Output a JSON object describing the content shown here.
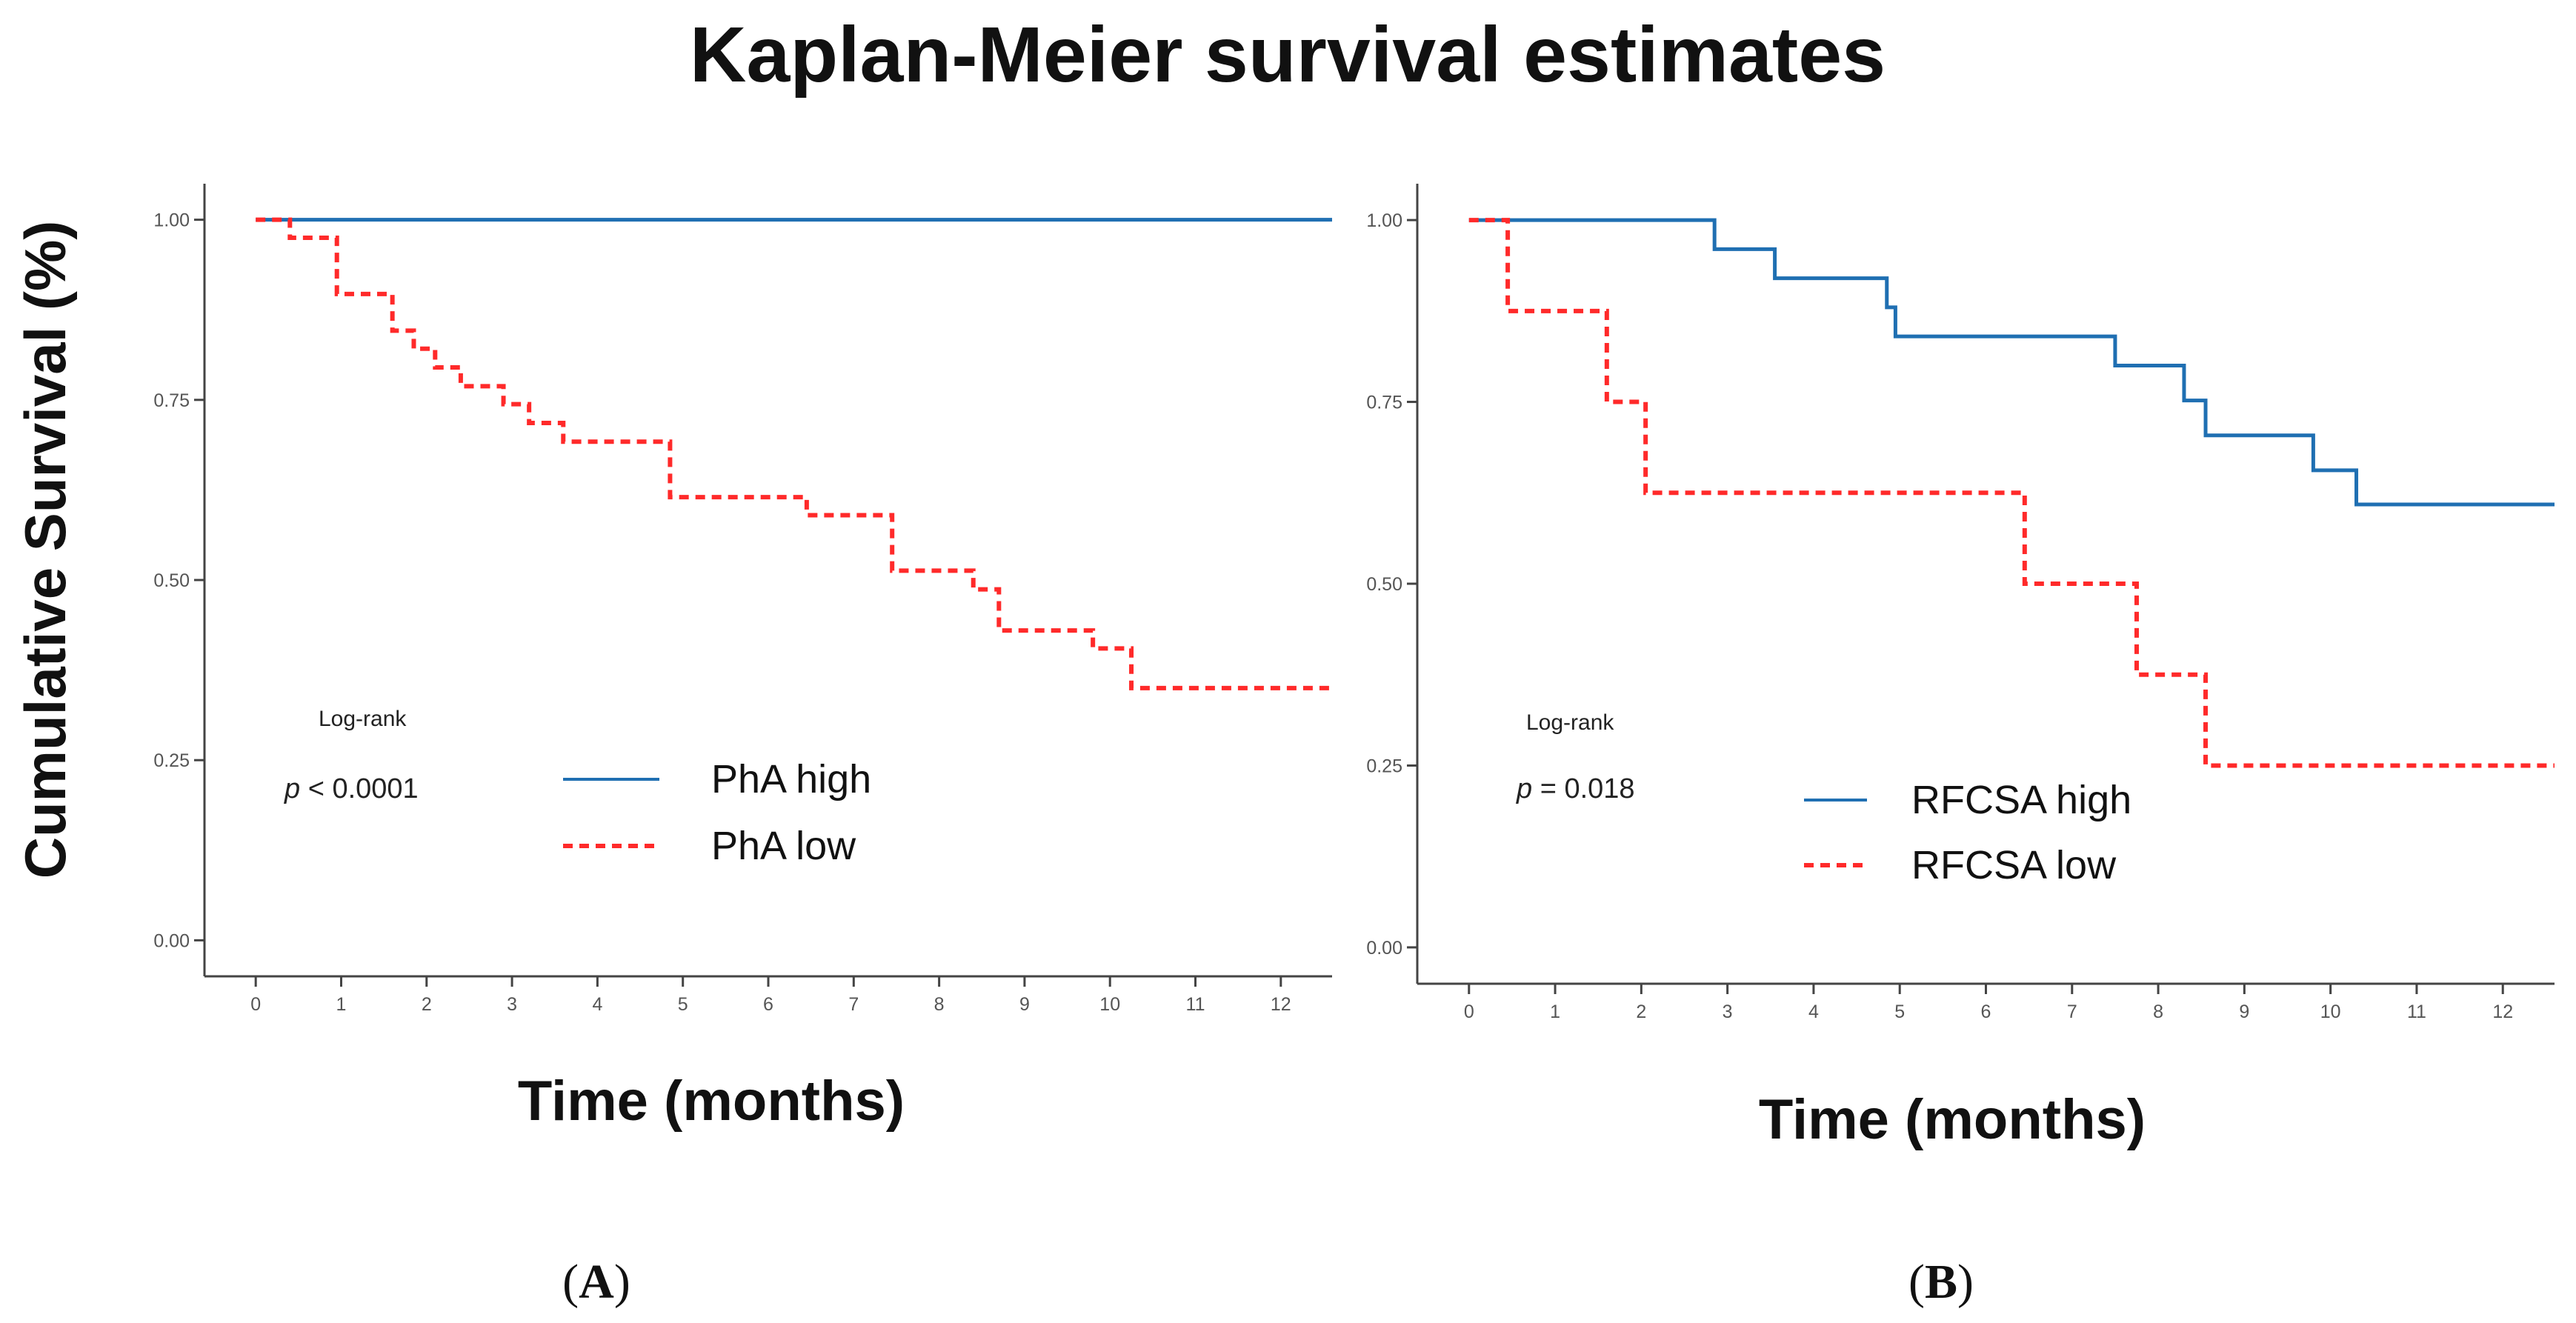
{
  "figure": {
    "title": "Kaplan-Meier survival estimates",
    "ylabel": "Cumulative Survival (%)"
  },
  "chart_data": [
    {
      "type": "line",
      "panel_label": "A",
      "title": "Kaplan-Meier survival estimates",
      "xlabel": "Time (months)",
      "ylabel": "Cumulative Survival (%)",
      "xlim": [
        -0.6,
        12.6
      ],
      "ylim": [
        -0.05,
        1.05
      ],
      "x_ticks": [
        "0",
        "1",
        "2",
        "3",
        "4",
        "5",
        "6",
        "7",
        "8",
        "9",
        "10",
        "11",
        "12"
      ],
      "y_ticks": [
        "0.00",
        "0.25",
        "0.50",
        "0.75",
        "1.00"
      ],
      "annotation": {
        "line1": "Log-rank",
        "p_symbol": "p",
        "p_value": " < 0.0001"
      },
      "legend": [
        "PhA high",
        "PhA low"
      ],
      "series": [
        {
          "name": "PhA high",
          "color": "#1f6fb2",
          "style": "solid",
          "times": [
            0,
            12.6
          ],
          "survival": [
            1.0,
            1.0
          ]
        },
        {
          "name": "PhA low",
          "color": "#ff2a2a",
          "style": "dashed",
          "times": [
            0,
            0.4,
            0.95,
            1.6,
            1.85,
            2.1,
            2.4,
            2.9,
            3.2,
            3.6,
            4.1,
            4.85,
            6.45,
            7.45,
            7.9,
            8.4,
            8.7,
            9.8,
            10.25,
            12.6
          ],
          "survival": [
            1.0,
            0.975,
            0.897,
            0.846,
            0.821,
            0.795,
            0.769,
            0.744,
            0.718,
            0.692,
            0.692,
            0.615,
            0.59,
            0.513,
            0.513,
            0.487,
            0.43,
            0.405,
            0.35,
            0.35
          ]
        }
      ]
    },
    {
      "type": "line",
      "panel_label": "B",
      "title": "Kaplan-Meier survival estimates",
      "xlabel": "Time (months)",
      "ylabel": "Cumulative Survival (%)",
      "xlim": [
        -0.6,
        12.6
      ],
      "ylim": [
        -0.05,
        1.05
      ],
      "x_ticks": [
        "0",
        "1",
        "2",
        "3",
        "4",
        "5",
        "6",
        "7",
        "8",
        "9",
        "10",
        "11",
        "12"
      ],
      "y_ticks": [
        "0.00",
        "0.25",
        "0.50",
        "0.75",
        "1.00"
      ],
      "annotation": {
        "line1": "Log-rank",
        "p_symbol": "p",
        "p_value": " = 0.018"
      },
      "legend": [
        "RFCSA high",
        "RFCSA low"
      ],
      "series": [
        {
          "name": "RFCSA high",
          "color": "#1f6fb2",
          "style": "solid",
          "times": [
            0,
            2.85,
            3.55,
            4.85,
            4.95,
            7.5,
            8.3,
            8.55,
            9.8,
            10.3,
            12.6
          ],
          "survival": [
            1.0,
            0.96,
            0.92,
            0.88,
            0.84,
            0.8,
            0.752,
            0.704,
            0.656,
            0.609,
            0.609
          ]
        },
        {
          "name": "RFCSA low",
          "color": "#ff2a2a",
          "style": "dashed",
          "times": [
            0,
            0.45,
            1.6,
            2.05,
            6.45,
            7.75,
            8.55,
            12.6
          ],
          "survival": [
            1.0,
            0.875,
            0.75,
            0.625,
            0.5,
            0.375,
            0.25,
            0.25
          ]
        }
      ]
    }
  ]
}
